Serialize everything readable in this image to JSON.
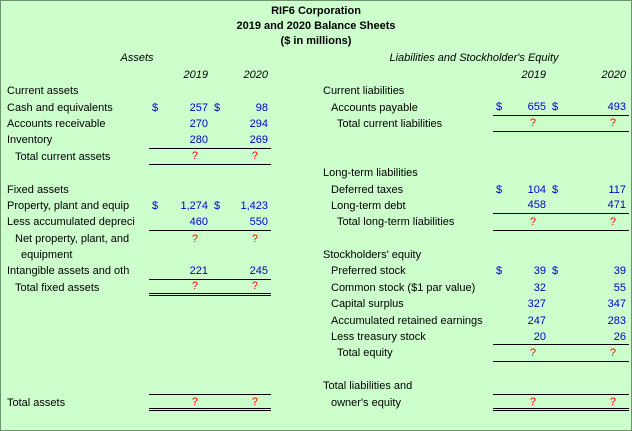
{
  "title": {
    "company": "RIF6 Corporation",
    "subtitle": "2019 and 2020 Balance Sheets",
    "units": "($ in millions)"
  },
  "colors": {
    "background": "#ccffcc",
    "number": "#0000cc",
    "unknown": "#ff0000",
    "text": "#000000"
  },
  "left": {
    "header": "Assets",
    "years": [
      "2019",
      "2020"
    ]
  },
  "right": {
    "header": "Liabilities and Stockholder's Equity",
    "years": [
      "2019",
      "2020"
    ]
  },
  "rows": [
    {
      "left": {
        "label": "Current assets"
      },
      "right": {
        "label": "Current liabilities"
      }
    },
    {
      "left": {
        "label": "Cash and equivalents",
        "cells": [
          {
            "d": "$",
            "v": "257"
          },
          {
            "d": "$",
            "v": "98"
          }
        ]
      },
      "right": {
        "label": "Accounts payable",
        "indent": 1,
        "cells": [
          {
            "d": "$",
            "v": "655"
          },
          {
            "d": "$",
            "v": "493"
          }
        ],
        "ul": "single"
      }
    },
    {
      "left": {
        "label": "Accounts receivable",
        "cells": [
          {
            "v": "270"
          },
          {
            "v": "294"
          }
        ]
      },
      "right": {
        "label": "Total current liabilities",
        "indent": 2,
        "cells": [
          {
            "v": "?"
          },
          {
            "v": "?"
          }
        ],
        "red": true,
        "ul": "single"
      }
    },
    {
      "left": {
        "label": "Inventory",
        "cells": [
          {
            "v": "280"
          },
          {
            "v": "269"
          }
        ],
        "ul": "single"
      },
      "right": null
    },
    {
      "left": {
        "label": "Total current assets",
        "indent": 1,
        "cells": [
          {
            "v": "?"
          },
          {
            "v": "?"
          }
        ],
        "red": true,
        "ul": "single"
      },
      "right": null
    },
    {
      "left": null,
      "right": {
        "label": "Long-term liabilities"
      }
    },
    {
      "left": {
        "label": "Fixed assets"
      },
      "right": {
        "label": "Deferred taxes",
        "indent": 1,
        "cells": [
          {
            "d": "$",
            "v": "104"
          },
          {
            "d": "$",
            "v": "117"
          }
        ]
      }
    },
    {
      "left": {
        "label": "Property, plant and equip",
        "cells": [
          {
            "d": "$",
            "v": "1,274"
          },
          {
            "d": "$",
            "v": "1,423"
          }
        ]
      },
      "right": {
        "label": "Long-term debt",
        "indent": 1,
        "cells": [
          {
            "v": "458"
          },
          {
            "v": "471"
          }
        ],
        "ul": "single"
      }
    },
    {
      "left": {
        "label": "Less accumulated depreci",
        "cells": [
          {
            "v": "460"
          },
          {
            "v": "550"
          }
        ],
        "ul": "single"
      },
      "right": {
        "label": "Total long-term liabilities",
        "indent": 2,
        "cells": [
          {
            "v": "?"
          },
          {
            "v": "?"
          }
        ],
        "red": true,
        "ul": "single"
      }
    },
    {
      "left": {
        "label": "Net property, plant, and",
        "indent": 1,
        "cells": [
          {
            "v": "?"
          },
          {
            "v": "?"
          }
        ],
        "red": true
      },
      "right": null
    },
    {
      "left": {
        "label": "equipment",
        "indent": 2
      },
      "right": {
        "label": "Stockholders' equity"
      }
    },
    {
      "left": {
        "label": "Intangible assets and oth",
        "cells": [
          {
            "v": "221"
          },
          {
            "v": "245"
          }
        ],
        "ul": "single"
      },
      "right": {
        "label": "Preferred stock",
        "indent": 1,
        "cells": [
          {
            "d": "$",
            "v": "39"
          },
          {
            "d": "$",
            "v": "39"
          }
        ]
      }
    },
    {
      "left": {
        "label": "Total fixed assets",
        "indent": 1,
        "cells": [
          {
            "v": "?"
          },
          {
            "v": "?"
          }
        ],
        "red": true,
        "ul": "double"
      },
      "right": {
        "label": "Common stock ($1 par value)",
        "indent": 1,
        "cells": [
          {
            "v": "32"
          },
          {
            "v": "55"
          }
        ]
      }
    },
    {
      "left": null,
      "right": {
        "label": "Capital surplus",
        "indent": 1,
        "cells": [
          {
            "v": "327"
          },
          {
            "v": "347"
          }
        ]
      }
    },
    {
      "left": null,
      "right": {
        "label": "Accumulated retained earnings",
        "indent": 1,
        "cells": [
          {
            "v": "247"
          },
          {
            "v": "283"
          }
        ]
      }
    },
    {
      "left": null,
      "right": {
        "label": "Less treasury stock",
        "indent": 1,
        "cells": [
          {
            "v": "20"
          },
          {
            "v": "26"
          }
        ],
        "ul": "single"
      }
    },
    {
      "left": null,
      "right": {
        "label": "Total equity",
        "indent": 2,
        "cells": [
          {
            "v": "?"
          },
          {
            "v": "?"
          }
        ],
        "red": true,
        "ul": "single"
      }
    },
    {
      "left": null,
      "right": null
    },
    {
      "left": null,
      "right": {
        "label": "Total liabilities and"
      }
    },
    {
      "left": {
        "label": "Total assets",
        "cells": [
          {
            "v": "?"
          },
          {
            "v": "?"
          }
        ],
        "red": true,
        "ul": "double",
        "topline": true
      },
      "right": {
        "label": "owner's equity",
        "indent": 1,
        "cells": [
          {
            "v": "?"
          },
          {
            "v": "?"
          }
        ],
        "red": true,
        "ul": "double",
        "topline": true
      }
    }
  ]
}
